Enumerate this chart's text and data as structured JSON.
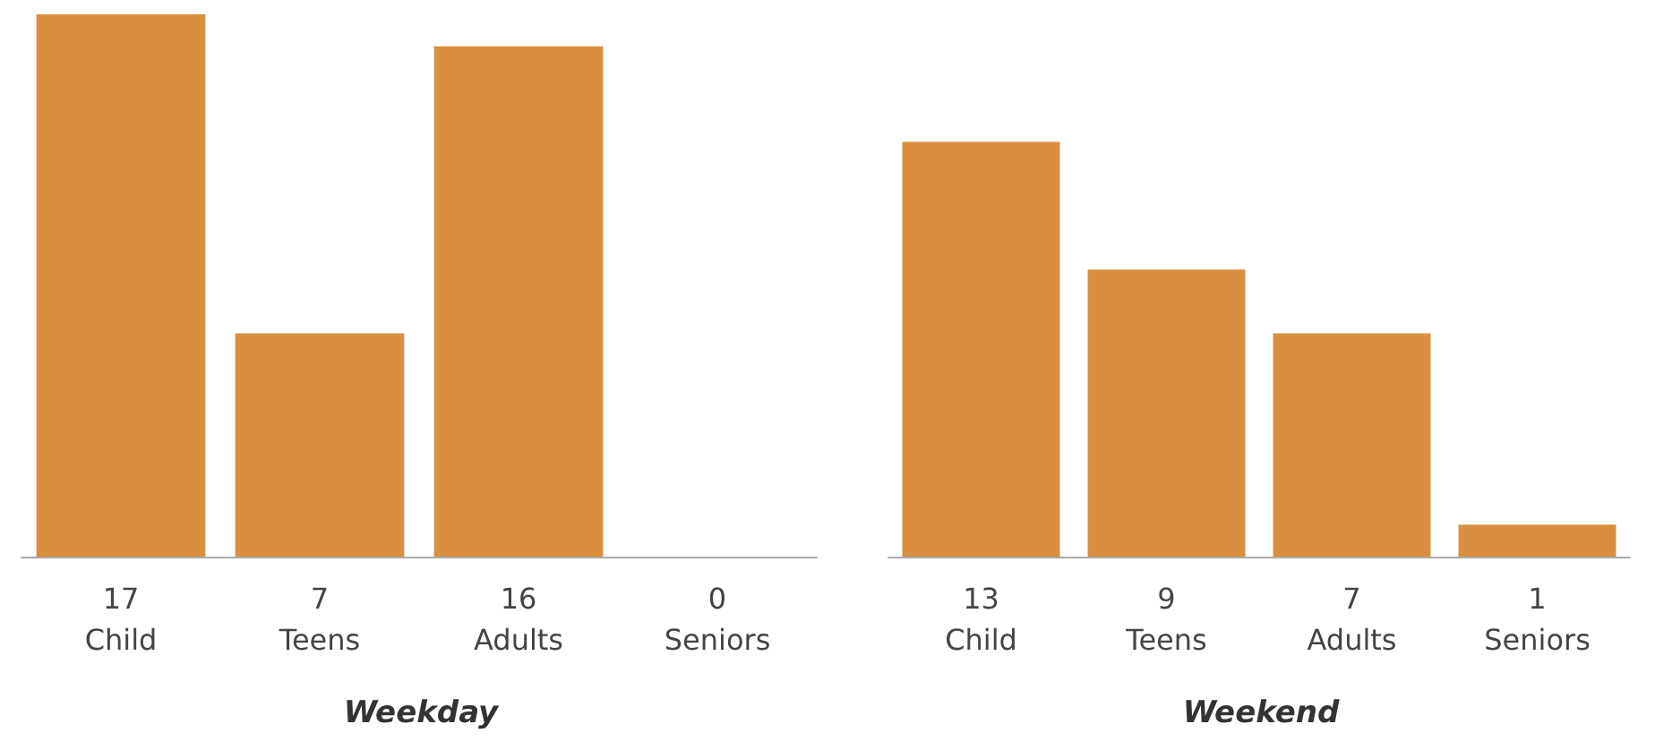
{
  "chart_data": [
    {
      "type": "bar",
      "title": "Weekday",
      "categories": [
        "Child",
        "Teens",
        "Adults",
        "Seniors"
      ],
      "values": [
        17,
        7,
        16,
        0
      ],
      "color": "#d98f3e",
      "data_labels": true,
      "grid": false
    },
    {
      "type": "bar",
      "title": "Weekend",
      "categories": [
        "Child",
        "Teens",
        "Adults",
        "Seniors"
      ],
      "values": [
        13,
        9,
        7,
        1
      ],
      "color": "#d98f3e",
      "data_labels": true,
      "grid": false
    }
  ]
}
